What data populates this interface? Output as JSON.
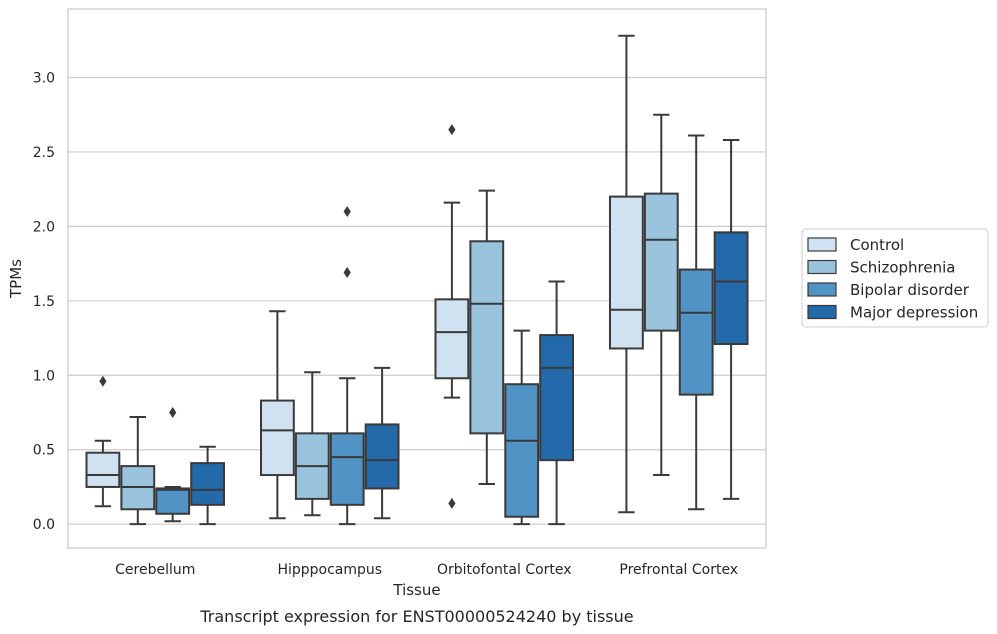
{
  "caption": "Transcript expression for ENST00000524240 by tissue",
  "chart_data": {
    "type": "boxplot",
    "xlabel": "Tissue",
    "ylabel": "TPMs",
    "ylim": [
      -0.16,
      3.46
    ],
    "yticks": [
      0.0,
      0.5,
      1.0,
      1.5,
      2.0,
      2.5,
      3.0
    ],
    "ytick_labels": [
      "0.0",
      "0.5",
      "1.0",
      "1.5",
      "2.0",
      "2.5",
      "3.0"
    ],
    "grid": true,
    "legend_position": "right-center",
    "categories": [
      "Cerebellum",
      "Hipppocampus",
      "Orbitofontal Cortex",
      "Prefrontal Cortex"
    ],
    "series": [
      {
        "name": "Control",
        "color": "#d0e2f2",
        "boxes": [
          {
            "whislo": 0.12,
            "q1": 0.25,
            "med": 0.33,
            "q3": 0.48,
            "whishi": 0.56,
            "fliers": [
              0.96
            ]
          },
          {
            "whislo": 0.04,
            "q1": 0.33,
            "med": 0.63,
            "q3": 0.83,
            "whishi": 1.43,
            "fliers": []
          },
          {
            "whislo": 0.85,
            "q1": 0.98,
            "med": 1.29,
            "q3": 1.51,
            "whishi": 2.16,
            "fliers": [
              0.14,
              2.65
            ]
          },
          {
            "whislo": 0.08,
            "q1": 1.18,
            "med": 1.44,
            "q3": 2.2,
            "whishi": 3.28,
            "fliers": []
          }
        ]
      },
      {
        "name": "Schizophrenia",
        "color": "#9ac4de",
        "boxes": [
          {
            "whislo": 0.0,
            "q1": 0.1,
            "med": 0.25,
            "q3": 0.39,
            "whishi": 0.72,
            "fliers": []
          },
          {
            "whislo": 0.06,
            "q1": 0.17,
            "med": 0.39,
            "q3": 0.61,
            "whishi": 1.02,
            "fliers": []
          },
          {
            "whislo": 0.27,
            "q1": 0.61,
            "med": 1.48,
            "q3": 1.9,
            "whishi": 2.24,
            "fliers": []
          },
          {
            "whislo": 0.33,
            "q1": 1.3,
            "med": 1.91,
            "q3": 2.22,
            "whishi": 2.75,
            "fliers": []
          }
        ]
      },
      {
        "name": "Bipolar disorder",
        "color": "#5093c4",
        "boxes": [
          {
            "whislo": 0.02,
            "q1": 0.07,
            "med": 0.23,
            "q3": 0.24,
            "whishi": 0.25,
            "fliers": [
              0.75
            ]
          },
          {
            "whislo": 0.0,
            "q1": 0.13,
            "med": 0.45,
            "q3": 0.61,
            "whishi": 0.98,
            "fliers": [
              1.69,
              2.1
            ]
          },
          {
            "whislo": 0.0,
            "q1": 0.05,
            "med": 0.56,
            "q3": 0.94,
            "whishi": 1.3,
            "fliers": []
          },
          {
            "whislo": 0.1,
            "q1": 0.87,
            "med": 1.42,
            "q3": 1.71,
            "whishi": 2.61,
            "fliers": []
          }
        ]
      },
      {
        "name": "Major depression",
        "color": "#2469a9",
        "boxes": [
          {
            "whislo": 0.0,
            "q1": 0.13,
            "med": 0.23,
            "q3": 0.41,
            "whishi": 0.52,
            "fliers": []
          },
          {
            "whislo": 0.04,
            "q1": 0.24,
            "med": 0.43,
            "q3": 0.67,
            "whishi": 1.05,
            "fliers": []
          },
          {
            "whislo": 0.0,
            "q1": 0.43,
            "med": 1.05,
            "q3": 1.27,
            "whishi": 1.63,
            "fliers": []
          },
          {
            "whislo": 0.17,
            "q1": 1.21,
            "med": 1.63,
            "q3": 1.96,
            "whishi": 2.58,
            "fliers": []
          }
        ]
      }
    ]
  }
}
